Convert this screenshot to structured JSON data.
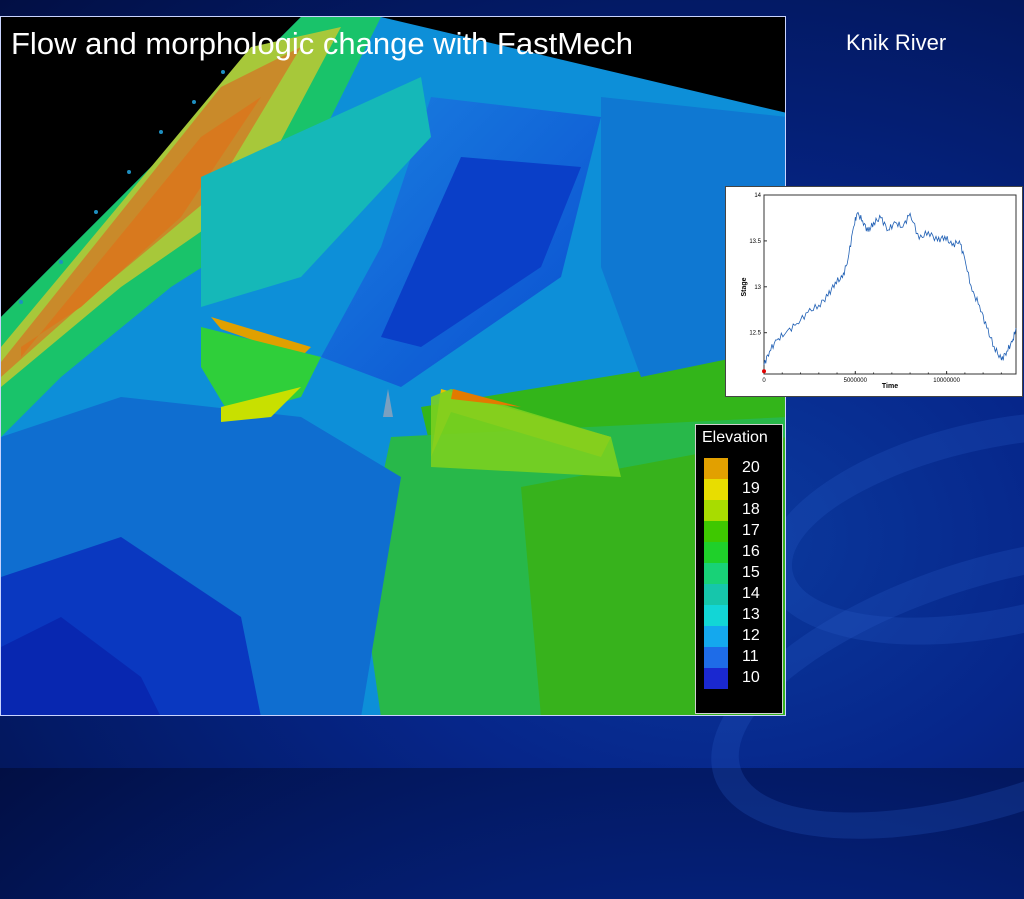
{
  "slide": {
    "title": "Flow and morphologic change with FastMech",
    "location": "Knik River"
  },
  "legend": {
    "title": "Elevation",
    "items": [
      {
        "label": "20",
        "color": "#e2a000"
      },
      {
        "label": "19",
        "color": "#e8dd00"
      },
      {
        "label": "18",
        "color": "#a8dc00"
      },
      {
        "label": "17",
        "color": "#3ec800"
      },
      {
        "label": "16",
        "color": "#1fd02a"
      },
      {
        "label": "15",
        "color": "#18d277"
      },
      {
        "label": "14",
        "color": "#16c6ab"
      },
      {
        "label": "13",
        "color": "#12d6d6"
      },
      {
        "label": "12",
        "color": "#14a8ee"
      },
      {
        "label": "11",
        "color": "#1e6ce8"
      },
      {
        "label": "10",
        "color": "#1a28d0"
      }
    ]
  },
  "chart_data": {
    "type": "line",
    "title": "",
    "xlabel": "Time",
    "ylabel": "Stage",
    "xlim": [
      0,
      13800000
    ],
    "ylim": [
      12.05,
      14
    ],
    "x_ticks": [
      "0",
      "5000000",
      "10000000"
    ],
    "y_ticks": [
      "14",
      "13.5",
      "13",
      "12.5"
    ],
    "series": [
      {
        "color": "#1f5fb4",
        "x": [
          0,
          300000,
          700000,
          1200000,
          1800000,
          2400000,
          3000000,
          3500000,
          3900000,
          4300000,
          4600000,
          4900000,
          5100000,
          5400000,
          5700000,
          6000000,
          6400000,
          6800000,
          7200000,
          7600000,
          8000000,
          8500000,
          9000000,
          9500000,
          9900000,
          10300000,
          10700000,
          11000000,
          11400000,
          11800000,
          12200000,
          12600000,
          13000000,
          13300000,
          13600000,
          13800000
        ],
        "y": [
          12.15,
          12.3,
          12.42,
          12.5,
          12.6,
          12.72,
          12.8,
          12.9,
          13.05,
          13.1,
          13.3,
          13.65,
          13.8,
          13.72,
          13.6,
          13.7,
          13.75,
          13.62,
          13.7,
          13.65,
          13.8,
          13.52,
          13.6,
          13.5,
          13.55,
          13.45,
          13.5,
          13.3,
          12.95,
          12.8,
          12.55,
          12.35,
          12.2,
          12.3,
          12.4,
          12.55
        ]
      }
    ],
    "marker": {
      "x": 0,
      "y": 12.08,
      "color": "#e00000"
    }
  }
}
